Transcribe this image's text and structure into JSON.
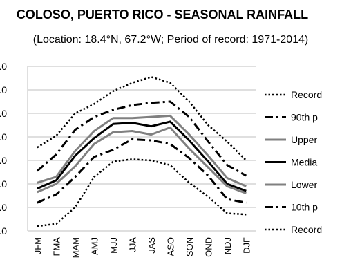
{
  "chart_data": {
    "type": "line",
    "title": "COLOSO, PUERTO RICO - SEASONAL RAINFALL",
    "subtitle": "(Location: 18.4°N, 67.2°W; Period of record: 1971-2014)",
    "xlabel": "",
    "ylabel": "",
    "y_tick_labels": [
      ".0",
      ".0",
      ".0",
      ".0",
      ".0",
      ".0",
      ".0",
      ".0"
    ],
    "ylim": [
      0,
      7
    ],
    "grid": true,
    "legend_position": "right",
    "categories": [
      "JFM",
      "FMA",
      "MAM",
      "AMJ",
      "MJJ",
      "JJA",
      "JAS",
      "ASO",
      "SON",
      "OND",
      "NDJ",
      "DJF"
    ],
    "series": [
      {
        "name": "Record",
        "style": "dotted",
        "color": "#000000",
        "width": 2.5,
        "values": [
          3.55,
          4.05,
          5.0,
          5.4,
          5.95,
          6.3,
          6.55,
          6.3,
          5.5,
          4.5,
          3.8,
          3.0
        ]
      },
      {
        "name": "90th p",
        "style": "dashdot",
        "color": "#000000",
        "width": 3,
        "values": [
          2.55,
          3.25,
          4.3,
          4.85,
          5.15,
          5.35,
          5.45,
          5.5,
          4.85,
          3.8,
          2.8,
          2.35
        ]
      },
      {
        "name": "Upper",
        "style": "solid",
        "color": "#808080",
        "width": 3,
        "values": [
          2.05,
          2.3,
          3.4,
          4.25,
          4.8,
          4.8,
          4.85,
          4.9,
          4.1,
          3.2,
          2.25,
          1.9
        ]
      },
      {
        "name": "Media",
        "style": "solid",
        "color": "#000000",
        "width": 3,
        "values": [
          1.8,
          2.15,
          3.2,
          3.95,
          4.55,
          4.6,
          4.45,
          4.65,
          3.85,
          2.95,
          2.0,
          1.7
        ]
      },
      {
        "name": "Lower",
        "style": "solid",
        "color": "#808080",
        "width": 3,
        "values": [
          1.65,
          2.0,
          2.75,
          3.7,
          4.2,
          4.25,
          4.1,
          4.4,
          3.5,
          2.7,
          1.9,
          1.6
        ]
      },
      {
        "name": "10th p",
        "style": "dashdot",
        "color": "#000000",
        "width": 3,
        "values": [
          1.2,
          1.55,
          2.3,
          3.15,
          3.45,
          3.9,
          3.85,
          3.7,
          3.1,
          2.35,
          1.35,
          1.2
        ]
      },
      {
        "name": "Record",
        "style": "dotted",
        "color": "#000000",
        "width": 2.5,
        "values": [
          0.2,
          0.3,
          1.0,
          2.3,
          2.95,
          3.05,
          3.0,
          2.8,
          2.05,
          1.45,
          0.75,
          0.7
        ]
      }
    ]
  }
}
